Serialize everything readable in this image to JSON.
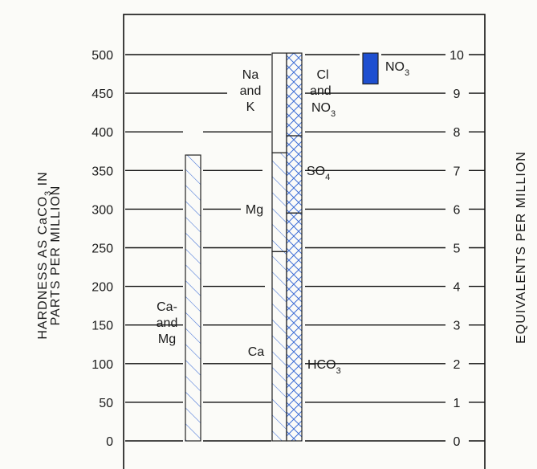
{
  "chart_data": {
    "type": "bar",
    "ylabel": [
      "HARDNESS AS CaCO",
      "3",
      " IN",
      "PARTS PER MILLION"
    ],
    "y2label": "EQUIVALENTS PER MILLION",
    "ylim": [
      0,
      500
    ],
    "y2lim": [
      0,
      10
    ],
    "yticks": [
      0,
      50,
      100,
      150,
      200,
      250,
      300,
      350,
      400,
      450,
      500
    ],
    "y2ticks": [
      0,
      1,
      2,
      3,
      4,
      5,
      6,
      7,
      8,
      9,
      10
    ],
    "grid": true,
    "bars": [
      {
        "name": "hardness",
        "segments": [
          {
            "label": [
              "Ca-",
              "and",
              "Mg"
            ],
            "from": 0,
            "to": 370,
            "pattern": "hatch-blue"
          }
        ]
      },
      {
        "name": "cations",
        "segments": [
          {
            "label": [
              "Ca"
            ],
            "from": 0,
            "to": 245,
            "pattern": "hatch-blue"
          },
          {
            "label": [
              "Mg"
            ],
            "from": 245,
            "to": 373,
            "pattern": "hatch-blue"
          },
          {
            "label": [
              "Na",
              "and",
              "K"
            ],
            "from": 373,
            "to": 502,
            "pattern": "none"
          }
        ]
      },
      {
        "name": "anions",
        "segments": [
          {
            "label": [
              "HCO",
              "3"
            ],
            "from": 0,
            "to": 295,
            "pattern": "cross-blue"
          },
          {
            "label": [
              "SO",
              "4"
            ],
            "from": 295,
            "to": 395,
            "pattern": "cross-blue"
          },
          {
            "label": [
              "Cl",
              "and",
              "NO",
              "3"
            ],
            "from": 395,
            "to": 502,
            "pattern": "cross-blue"
          }
        ]
      },
      {
        "name": "nitrate",
        "segments": [
          {
            "label": [
              "NO",
              "3"
            ],
            "from": 462,
            "to": 502,
            "pattern": "solid-blue"
          }
        ]
      }
    ]
  },
  "colors": {
    "hatch": "#3f6fd6",
    "solid": "#1e4fd0",
    "ink": "#1a1a1a",
    "grid": "#111111"
  },
  "icons": []
}
